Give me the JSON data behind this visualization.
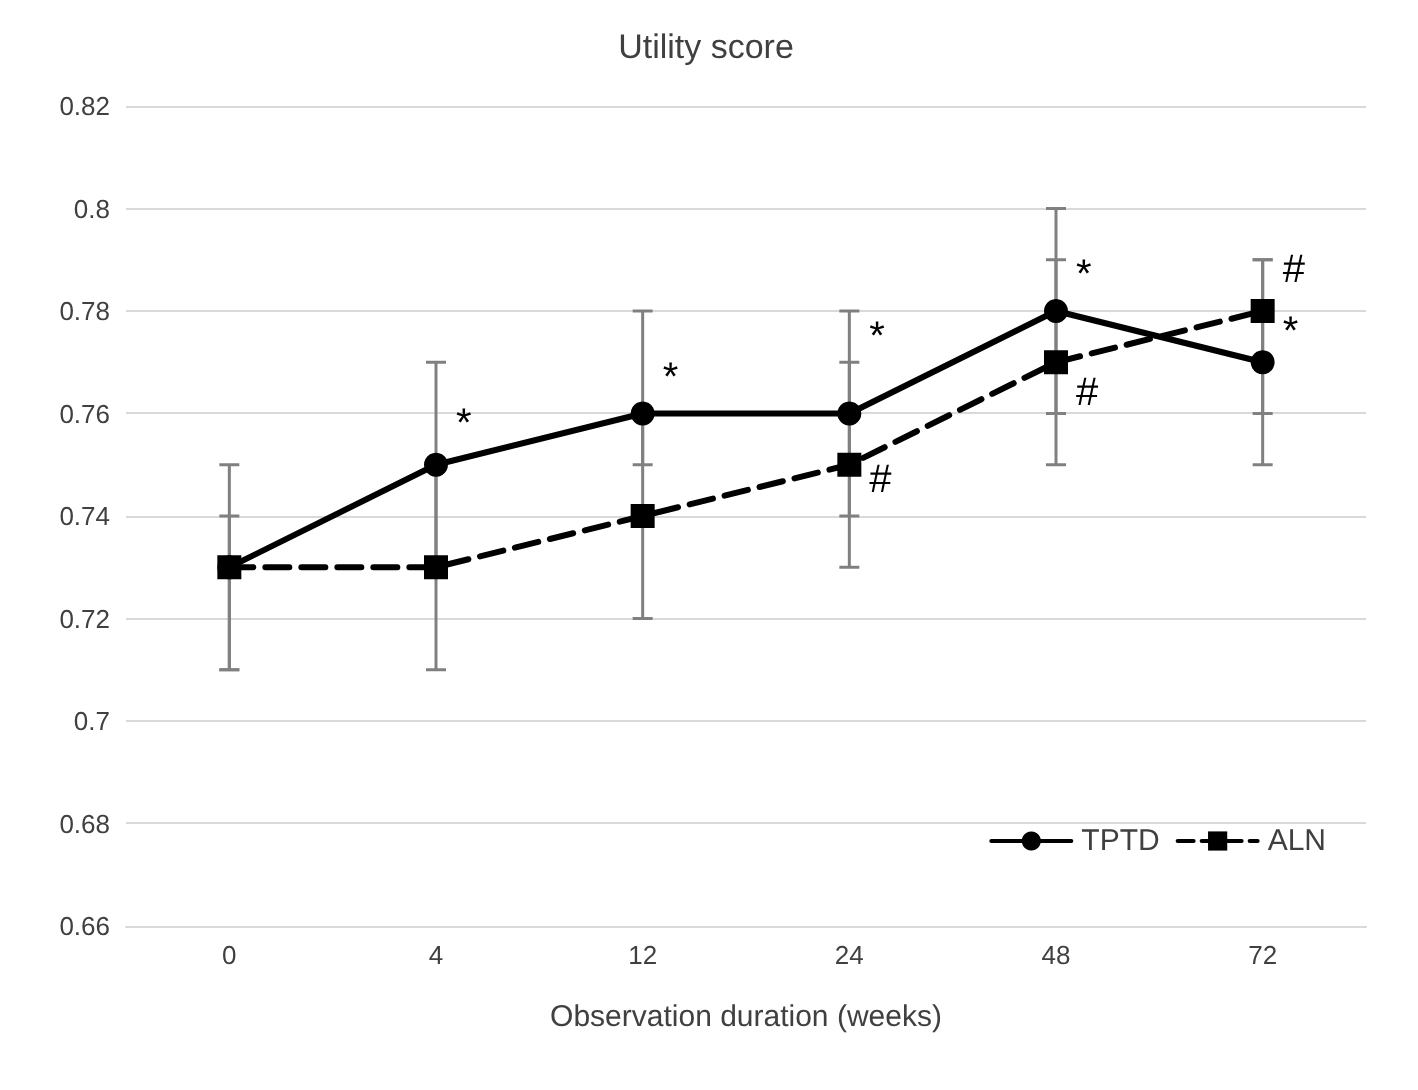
{
  "chart_data": {
    "type": "line",
    "title": "Utility score",
    "xlabel": "Observation duration (weeks)",
    "categories": [
      "0",
      "4",
      "12",
      "24",
      "48",
      "72"
    ],
    "series": [
      {
        "name": "TPTD",
        "color": "#000000",
        "marker": "circle",
        "line_style": "solid",
        "values": [
          0.73,
          0.75,
          0.76,
          0.76,
          0.78,
          0.77
        ],
        "errors": [
          0.02,
          0.02,
          [
            0.75,
            0.78
          ],
          [
            0.74,
            0.78
          ],
          [
            0.76,
            0.8
          ],
          [
            0.75,
            0.79
          ]
        ]
      },
      {
        "name": "ALN",
        "color": "#000000",
        "marker": "square",
        "line_style": "dashed",
        "values": [
          0.73,
          0.73,
          0.74,
          0.75,
          0.77,
          0.78
        ],
        "errors": [
          [
            0.71,
            0.74
          ],
          0.02,
          0.02,
          [
            0.73,
            0.77
          ],
          [
            0.75,
            0.79
          ],
          [
            0.76,
            0.79
          ]
        ]
      }
    ],
    "ylim": [
      0.66,
      0.82
    ],
    "yticks": [
      0.66,
      0.68,
      0.7,
      0.72,
      0.74,
      0.76,
      0.78,
      0.8,
      0.82
    ],
    "grid": "y",
    "legend": "bottom right",
    "annotations": [
      {
        "text": "*",
        "x": "4",
        "y": 0.758
      },
      {
        "text": "*",
        "x": "12",
        "y": 0.767
      },
      {
        "text": "*",
        "x": "24",
        "y": 0.775
      },
      {
        "text": "#",
        "x": "24",
        "y": 0.747
      },
      {
        "text": "*",
        "x": "48",
        "y": 0.787
      },
      {
        "text": "#",
        "x": "48",
        "y": 0.764
      },
      {
        "text": "#",
        "x": "72",
        "y": 0.788
      },
      {
        "text": "*",
        "x": "72",
        "y": 0.776
      }
    ]
  }
}
